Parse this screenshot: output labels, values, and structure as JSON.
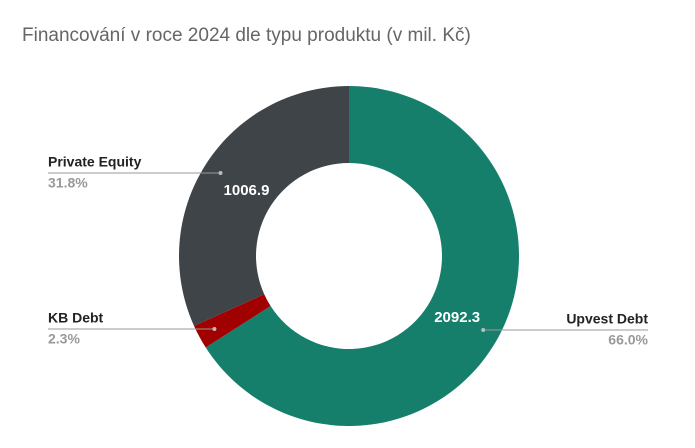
{
  "chart_data": {
    "type": "donut",
    "title": "Financování v roce 2024 dle typu produktu (v mil. Kč)",
    "categories": [
      "Upvest Debt",
      "KB Debt",
      "Private Equity"
    ],
    "values": [
      2092.3,
      73,
      1006.9
    ],
    "value_labels": [
      "2092.3",
      null,
      "1006.9"
    ],
    "percent_labels": [
      "66.0%",
      "2.3%",
      "31.8%"
    ],
    "colors": [
      "#167f6c",
      "#a10000",
      "#3f4448"
    ]
  }
}
